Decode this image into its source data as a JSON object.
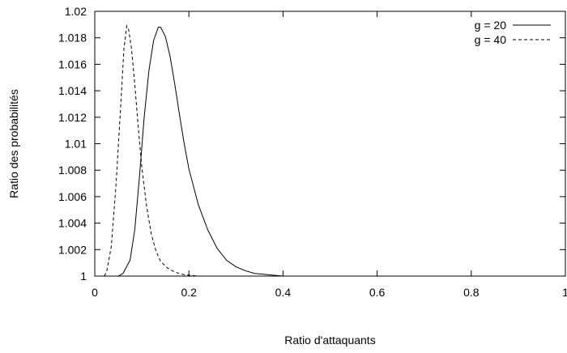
{
  "chart_data": {
    "type": "line",
    "xlabel": "Ratio d'attaquants",
    "ylabel": "Ratio des probabilités",
    "xlim": [
      0,
      1
    ],
    "ylim": [
      1,
      1.02
    ],
    "x_ticks": [
      "0",
      "0.2",
      "0.4",
      "0.6",
      "0.8",
      "1"
    ],
    "y_ticks": [
      "1",
      "1.002",
      "1.004",
      "1.006",
      "1.008",
      "1.01",
      "1.012",
      "1.014",
      "1.016",
      "1.018",
      "1.02"
    ],
    "legend_position": "top-right",
    "grid": false,
    "series": [
      {
        "name": "g = 20",
        "style": "solid",
        "color": "#000000",
        "points": [
          [
            0.0,
            1.0
          ],
          [
            0.03,
            1.0
          ],
          [
            0.05,
            1.0
          ],
          [
            0.06,
            1.0002
          ],
          [
            0.075,
            1.0012
          ],
          [
            0.085,
            1.0035
          ],
          [
            0.095,
            1.0075
          ],
          [
            0.105,
            1.012
          ],
          [
            0.115,
            1.0155
          ],
          [
            0.125,
            1.0178
          ],
          [
            0.135,
            1.0188
          ],
          [
            0.14,
            1.0188
          ],
          [
            0.15,
            1.0181
          ],
          [
            0.16,
            1.0166
          ],
          [
            0.17,
            1.0145
          ],
          [
            0.18,
            1.0122
          ],
          [
            0.19,
            1.01
          ],
          [
            0.2,
            1.0081
          ],
          [
            0.22,
            1.0054
          ],
          [
            0.24,
            1.0035
          ],
          [
            0.26,
            1.0021
          ],
          [
            0.28,
            1.0012
          ],
          [
            0.3,
            1.0007
          ],
          [
            0.32,
            1.0004
          ],
          [
            0.34,
            1.0002
          ],
          [
            0.37,
            1.0001
          ],
          [
            0.4,
            1.0
          ],
          [
            0.5,
            1.0
          ],
          [
            0.6,
            1.0
          ],
          [
            0.7,
            1.0
          ],
          [
            0.8,
            1.0
          ],
          [
            0.9,
            1.0
          ],
          [
            1.0,
            1.0
          ]
        ]
      },
      {
        "name": "g = 40",
        "style": "dashed",
        "color": "#000000",
        "points": [
          [
            0.02,
            1.0
          ],
          [
            0.025,
            1.0003
          ],
          [
            0.035,
            1.0022
          ],
          [
            0.045,
            1.0068
          ],
          [
            0.055,
            1.0128
          ],
          [
            0.062,
            1.0172
          ],
          [
            0.068,
            1.0189
          ],
          [
            0.072,
            1.0186
          ],
          [
            0.078,
            1.0172
          ],
          [
            0.085,
            1.0145
          ],
          [
            0.093,
            1.011
          ],
          [
            0.1,
            1.0082
          ],
          [
            0.11,
            1.0053
          ],
          [
            0.12,
            1.0032
          ],
          [
            0.13,
            1.0019
          ],
          [
            0.14,
            1.0011
          ],
          [
            0.155,
            1.0006
          ],
          [
            0.17,
            1.0003
          ],
          [
            0.19,
            1.0001
          ],
          [
            0.22,
            1.0
          ],
          [
            0.3,
            1.0
          ],
          [
            0.4,
            1.0
          ],
          [
            0.5,
            1.0
          ],
          [
            0.6,
            1.0
          ],
          [
            0.7,
            1.0
          ],
          [
            0.8,
            1.0
          ],
          [
            0.9,
            1.0
          ],
          [
            1.0,
            1.0
          ]
        ]
      }
    ]
  }
}
